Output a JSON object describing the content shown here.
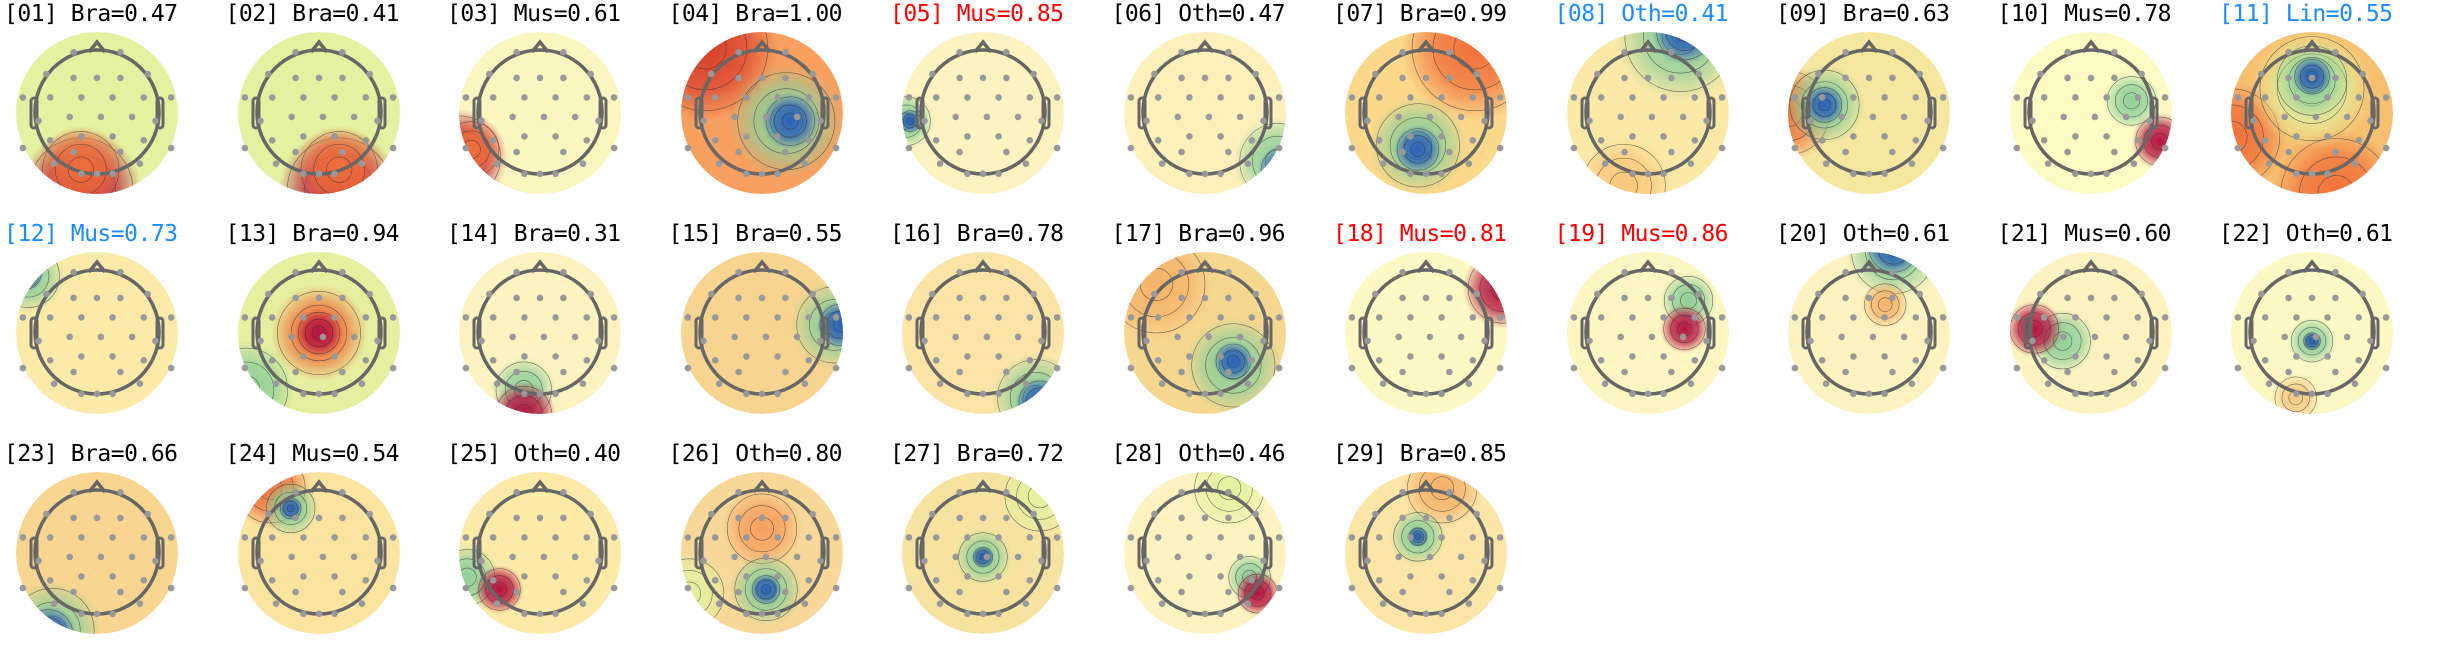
{
  "colors": {
    "normal": "#000000",
    "flag_red": "#ff0000",
    "flag_blue": "#1a8cff"
  },
  "components": [
    {
      "index": "01",
      "label": "Bra",
      "score": "0.47",
      "title_color": "normal"
    },
    {
      "index": "02",
      "label": "Bra",
      "score": "0.41",
      "title_color": "normal"
    },
    {
      "index": "03",
      "label": "Mus",
      "score": "0.61",
      "title_color": "normal"
    },
    {
      "index": "04",
      "label": "Bra",
      "score": "1.00",
      "title_color": "normal"
    },
    {
      "index": "05",
      "label": "Mus",
      "score": "0.85",
      "title_color": "flag_red"
    },
    {
      "index": "06",
      "label": "Oth",
      "score": "0.47",
      "title_color": "normal"
    },
    {
      "index": "07",
      "label": "Bra",
      "score": "0.99",
      "title_color": "normal"
    },
    {
      "index": "08",
      "label": "Oth",
      "score": "0.41",
      "title_color": "flag_blue"
    },
    {
      "index": "09",
      "label": "Bra",
      "score": "0.63",
      "title_color": "normal"
    },
    {
      "index": "10",
      "label": "Mus",
      "score": "0.78",
      "title_color": "normal"
    },
    {
      "index": "11",
      "label": "Lin",
      "score": "0.55",
      "title_color": "flag_blue"
    },
    {
      "index": "12",
      "label": "Mus",
      "score": "0.73",
      "title_color": "flag_blue"
    },
    {
      "index": "13",
      "label": "Bra",
      "score": "0.94",
      "title_color": "normal"
    },
    {
      "index": "14",
      "label": "Bra",
      "score": "0.31",
      "title_color": "normal"
    },
    {
      "index": "15",
      "label": "Bra",
      "score": "0.55",
      "title_color": "normal"
    },
    {
      "index": "16",
      "label": "Bra",
      "score": "0.78",
      "title_color": "normal"
    },
    {
      "index": "17",
      "label": "Bra",
      "score": "0.96",
      "title_color": "normal"
    },
    {
      "index": "18",
      "label": "Mus",
      "score": "0.81",
      "title_color": "flag_red"
    },
    {
      "index": "19",
      "label": "Mus",
      "score": "0.86",
      "title_color": "flag_red"
    },
    {
      "index": "20",
      "label": "Oth",
      "score": "0.61",
      "title_color": "normal"
    },
    {
      "index": "21",
      "label": "Mus",
      "score": "0.60",
      "title_color": "normal"
    },
    {
      "index": "22",
      "label": "Oth",
      "score": "0.61",
      "title_color": "normal"
    },
    {
      "index": "23",
      "label": "Bra",
      "score": "0.66",
      "title_color": "normal"
    },
    {
      "index": "24",
      "label": "Mus",
      "score": "0.54",
      "title_color": "normal"
    },
    {
      "index": "25",
      "label": "Oth",
      "score": "0.40",
      "title_color": "normal"
    },
    {
      "index": "26",
      "label": "Oth",
      "score": "0.80",
      "title_color": "normal"
    },
    {
      "index": "27",
      "label": "Bra",
      "score": "0.72",
      "title_color": "normal"
    },
    {
      "index": "28",
      "label": "Oth",
      "score": "0.46",
      "title_color": "normal"
    },
    {
      "index": "29",
      "label": "Bra",
      "score": "0.85",
      "title_color": "normal"
    }
  ]
}
